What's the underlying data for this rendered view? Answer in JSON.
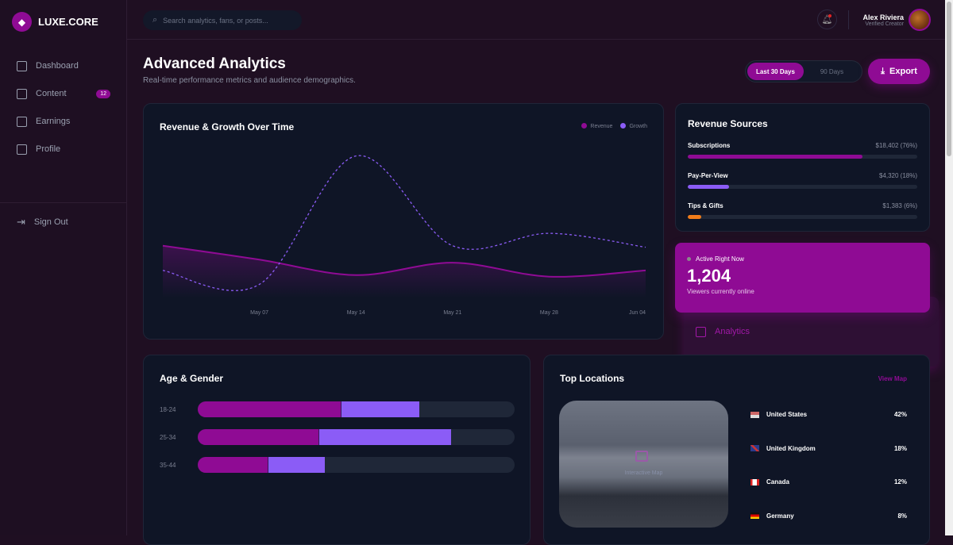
{
  "brand": {
    "name": "LUXE.CORE",
    "accent": "#8f0b94",
    "secondary": "#8b5cf6",
    "tertiary": "#f07c1a"
  },
  "sidebar": {
    "items": [
      {
        "label": "Dashboard",
        "icon": "grid-icon"
      },
      {
        "label": "Analytics",
        "icon": "chart-icon",
        "active": true
      },
      {
        "label": "Content",
        "icon": "video-icon",
        "badge": "12"
      },
      {
        "label": "Earnings",
        "icon": "money-icon"
      },
      {
        "label": "Profile",
        "icon": "user-icon"
      }
    ],
    "signout": "Sign Out"
  },
  "topbar": {
    "search_placeholder": "Search analytics, fans, or posts...",
    "user_name": "Alex Riviera",
    "user_role": "Verified Creator"
  },
  "header": {
    "title": "Advanced Analytics",
    "subtitle": "Real-time performance metrics and audience demographics.",
    "range_options": [
      "Last 30 Days",
      "90 Days"
    ],
    "range_selected": "Last 30 Days",
    "export_label": "Export"
  },
  "chart_data": {
    "type": "line",
    "title": "Revenue & Growth Over Time",
    "x": [
      "",
      "May 07",
      "May 14",
      "May 21",
      "May 28",
      "Jun 04"
    ],
    "series": [
      {
        "name": "Revenue",
        "color": "#8f0b94",
        "style": "solid-area",
        "values": [
          34,
          25,
          15,
          23,
          14,
          18
        ]
      },
      {
        "name": "Growth",
        "color": "#8b5cf6",
        "style": "dashed",
        "values": [
          18,
          9,
          92,
          34,
          42,
          33
        ]
      }
    ],
    "ylim": [
      0,
      100
    ],
    "grid": false,
    "legend": "top-right"
  },
  "revenue_sources": {
    "title": "Revenue Sources",
    "items": [
      {
        "label": "Subscriptions",
        "value": "$18,402 (76%)",
        "pct": 76,
        "color": "#8f0b94"
      },
      {
        "label": "Pay-Per-View",
        "value": "$4,320 (18%)",
        "pct": 18,
        "color": "#8b5cf6"
      },
      {
        "label": "Tips & Gifts",
        "value": "$1,383 (6%)",
        "pct": 6,
        "color": "#f07c1a"
      }
    ]
  },
  "active_now": {
    "label": "Active Right Now",
    "count": "1,204",
    "caption": "Viewers currently online"
  },
  "age_gender": {
    "title": "Age & Gender",
    "rows": [
      {
        "label": "18-24",
        "segments": [
          45,
          25
        ]
      },
      {
        "label": "25-34",
        "segments": [
          38,
          42
        ]
      },
      {
        "label": "35-44",
        "segments": [
          22,
          18
        ]
      }
    ]
  },
  "locations": {
    "title": "Top Locations",
    "link": "View Map",
    "map_caption": "Interactive Map",
    "items": [
      {
        "country": "United States",
        "pct": "42%",
        "flag": "us"
      },
      {
        "country": "United Kingdom",
        "pct": "18%",
        "flag": "uk"
      },
      {
        "country": "Canada",
        "pct": "12%",
        "flag": "ca"
      },
      {
        "country": "Germany",
        "pct": "8%",
        "flag": "de"
      }
    ]
  }
}
